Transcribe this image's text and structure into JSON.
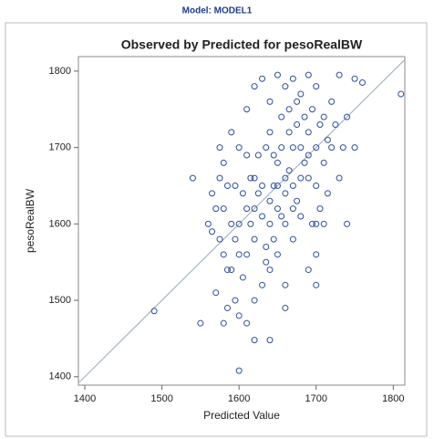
{
  "header": {
    "title": "Model: MODEL1"
  },
  "chart_data": {
    "type": "scatter",
    "title": "Observed by Predicted for pesoRealBW",
    "xlabel": "Predicted Value",
    "ylabel": "pesoRealBW",
    "xlim": [
      1391.7,
      1815
    ],
    "ylim": [
      1389,
      1819
    ],
    "xticks": [
      1400,
      1500,
      1600,
      1700,
      1800
    ],
    "yticks": [
      1400,
      1500,
      1600,
      1700,
      1800
    ],
    "color": "#2f4f9a",
    "reference_line": true,
    "x": [
      1600,
      1610,
      1620,
      1630,
      1640,
      1650,
      1660,
      1670,
      1680,
      1690,
      1605,
      1615,
      1625,
      1635,
      1645,
      1655,
      1665,
      1675,
      1685,
      1695,
      1590,
      1595,
      1585,
      1580,
      1575,
      1570,
      1565,
      1575,
      1580,
      1590,
      1610,
      1620,
      1630,
      1640,
      1650,
      1660,
      1670,
      1680,
      1690,
      1700,
      1700,
      1710,
      1720,
      1715,
      1705,
      1725,
      1730,
      1710,
      1700,
      1690,
      1620,
      1630,
      1640,
      1650,
      1660,
      1670,
      1600,
      1610,
      1595,
      1585,
      1640,
      1645,
      1655,
      1665,
      1675,
      1635,
      1625,
      1615,
      1605,
      1595,
      1650,
      1660,
      1670,
      1680,
      1690,
      1700,
      1710,
      1720,
      1600,
      1610,
      1620,
      1630,
      1640,
      1650,
      1660,
      1670,
      1680,
      1690,
      1635,
      1645,
      1580,
      1570,
      1565,
      1585,
      1575,
      1560,
      1590,
      1600,
      1610,
      1620,
      1655,
      1665,
      1675,
      1685,
      1695,
      1705,
      1715,
      1735,
      1740,
      1700,
      1490,
      1540,
      1810,
      1750,
      1760,
      1750,
      1600,
      1550,
      1620,
      1640,
      1730,
      1740,
      1580,
      1700,
      1660
    ],
    "y": [
      1560,
      1620,
      1580,
      1650,
      1600,
      1680,
      1640,
      1700,
      1660,
      1720,
      1530,
      1600,
      1640,
      1570,
      1690,
      1610,
      1750,
      1630,
      1680,
      1600,
      1600,
      1650,
      1540,
      1620,
      1580,
      1510,
      1640,
      1700,
      1680,
      1720,
      1750,
      1780,
      1790,
      1760,
      1795,
      1780,
      1790,
      1770,
      1795,
      1780,
      1650,
      1680,
      1700,
      1640,
      1620,
      1730,
      1660,
      1600,
      1560,
      1540,
      1500,
      1520,
      1540,
      1560,
      1520,
      1580,
      1480,
      1470,
      1500,
      1490,
      1720,
      1650,
      1700,
      1670,
      1730,
      1700,
      1690,
      1660,
      1640,
      1580,
      1620,
      1600,
      1650,
      1610,
      1660,
      1700,
      1740,
      1760,
      1700,
      1690,
      1620,
      1610,
      1630,
      1650,
      1660,
      1620,
      1700,
      1690,
      1550,
      1580,
      1560,
      1620,
      1590,
      1650,
      1660,
      1600,
      1540,
      1600,
      1560,
      1660,
      1740,
      1720,
      1760,
      1740,
      1750,
      1730,
      1710,
      1700,
      1740,
      1600,
      1486,
      1660,
      1770,
      1790,
      1785,
      1700,
      1408,
      1470,
      1448,
      1448,
      1795,
      1600,
      1470,
      1520,
      1490
    ]
  }
}
